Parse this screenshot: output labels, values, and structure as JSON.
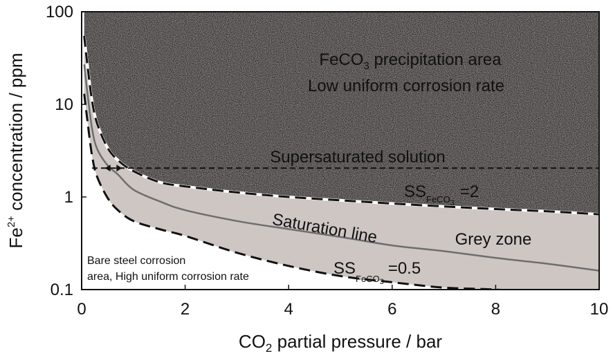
{
  "chart_data": {
    "type": "line",
    "xlabel": {
      "main": "CO",
      "sub": "2",
      "rest": " partial pressure / bar"
    },
    "ylabel": {
      "main": "Fe",
      "sup": "2+",
      "rest": " concentration / ppm"
    },
    "xlim": [
      0,
      10
    ],
    "ylim": [
      0.1,
      100
    ],
    "yscale": "log",
    "x_ticks": [
      {
        "value": 0,
        "label": "0"
      },
      {
        "value": 2,
        "label": "2"
      },
      {
        "value": 4,
        "label": "4"
      },
      {
        "value": 6,
        "label": "6"
      },
      {
        "value": 8,
        "label": "8"
      },
      {
        "value": 10,
        "label": "10"
      }
    ],
    "y_ticks": [
      {
        "value": 0.1,
        "label": "0.1"
      },
      {
        "value": 1,
        "label": "1"
      },
      {
        "value": 10,
        "label": "10"
      },
      {
        "value": 100,
        "label": "100"
      }
    ],
    "grid": false,
    "series": [
      {
        "name": "SS FeCO3 = 2",
        "style": "dashed",
        "x": [
          0.05,
          0.1,
          0.2,
          0.3,
          0.5,
          0.7,
          1.0,
          1.5,
          2.0,
          3.0,
          4.0,
          5.0,
          6.0,
          7.0,
          8.0,
          9.0,
          10.0
        ],
        "y": [
          55,
          30,
          11,
          6.2,
          3.4,
          2.5,
          1.9,
          1.45,
          1.3,
          1.12,
          1.0,
          0.92,
          0.85,
          0.79,
          0.74,
          0.7,
          0.65
        ]
      },
      {
        "name": "Saturation line",
        "style": "solid",
        "x": [
          0.05,
          0.1,
          0.2,
          0.3,
          0.5,
          0.7,
          1.0,
          1.5,
          2.0,
          3.0,
          4.0,
          5.0,
          6.0,
          7.0,
          8.0,
          9.0,
          10.0
        ],
        "y": [
          27,
          15,
          5.5,
          3.3,
          2.2,
          1.75,
          1.2,
          0.9,
          0.72,
          0.55,
          0.45,
          0.37,
          0.3,
          0.26,
          0.22,
          0.19,
          0.16
        ]
      },
      {
        "name": "SS FeCO3 = 0.5",
        "style": "dashed",
        "x": [
          0.05,
          0.1,
          0.2,
          0.3,
          0.5,
          0.7,
          1.0,
          1.5,
          2.0,
          3.0,
          4.0,
          5.0,
          6.0,
          7.0,
          8.0,
          9.0,
          10.0
        ],
        "y": [
          13,
          7.5,
          2.8,
          1.65,
          0.98,
          0.72,
          0.55,
          0.45,
          0.38,
          0.25,
          0.18,
          0.14,
          0.12,
          0.105,
          0.1,
          0.09,
          0.085
        ]
      }
    ],
    "reference_line": {
      "style": "dashed",
      "y": 2.05,
      "x_range": [
        0.2,
        10
      ]
    },
    "marker": {
      "type": "double-arrow",
      "x_range": [
        0.45,
        0.78
      ],
      "y": 2.05
    },
    "regions": {
      "precipitation_line1": {
        "main": "FeCO",
        "sub": "3",
        "rest": " precipitation area"
      },
      "precipitation_line2": "Low uniform corrosion rate",
      "supersaturated": "Supersaturated solution",
      "ss2": {
        "main": "SS",
        "sub": "FeCO",
        "subsub": "3",
        "rest": "=2"
      },
      "saturation": "Saturation line",
      "grey_zone": "Grey zone",
      "ss05": {
        "main": "SS",
        "sub": "FeCO",
        "subsub": "3",
        "rest": "=0.5"
      },
      "bare_steel_line1": "Bare steel corrosion",
      "bare_steel_line2": "area, High uniform corrosion rate"
    },
    "colors": {
      "precipitation_fill": "#7e7a78",
      "grey_zone_fill": "#cdc6c3",
      "line": "#111111",
      "saturation_line": "#6e6e6e"
    }
  }
}
